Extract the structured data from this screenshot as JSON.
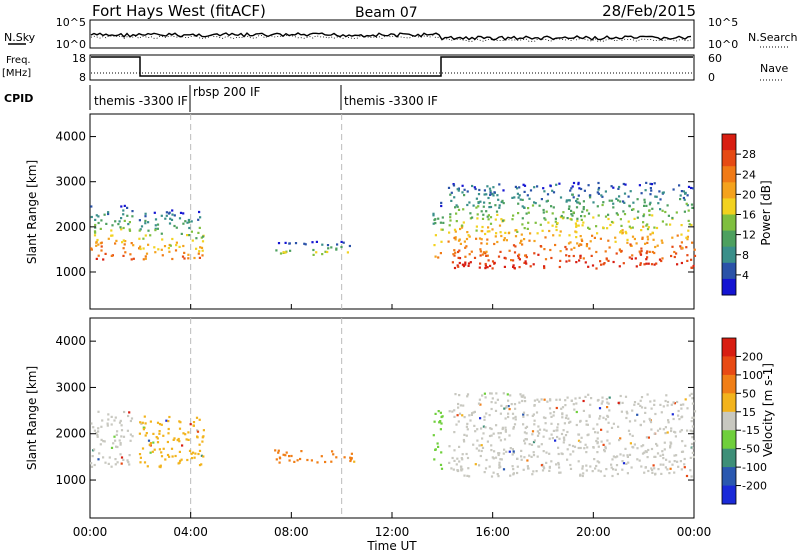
{
  "header": {
    "title": "Fort Hays West (fitACF)",
    "beam": "Beam 07",
    "date": "28/Feb/2015"
  },
  "nsky_panel": {
    "left_label": "N.Sky",
    "left_ticks": [
      "10^5",
      "10^0"
    ],
    "right_label": "N.Search",
    "right_ticks": [
      "10^5",
      "10^0"
    ]
  },
  "freq_panel": {
    "left_label": "Freq.",
    "left_units": "[MHz]",
    "left_ticks": [
      "18",
      "8"
    ],
    "right_label": "Nave",
    "right_ticks": [
      "60",
      "0"
    ]
  },
  "cpid_panel": {
    "label": "CPID",
    "segments": [
      {
        "start_hour": 0.0,
        "label": "themis -3300 IF"
      },
      {
        "start_hour": 4.0,
        "label": "rbsp 200 IF"
      },
      {
        "start_hour": 10.0,
        "label": "themis -3300 IF"
      }
    ]
  },
  "x_axis": {
    "label": "Time UT",
    "ticks": [
      "00:00",
      "04:00",
      "08:00",
      "12:00",
      "16:00",
      "20:00",
      "00:00"
    ],
    "range_hours": [
      0,
      24
    ]
  },
  "chart_data": [
    {
      "type": "heatmap",
      "panel": "power",
      "ylabel": "Slant Range [km]",
      "yticks": [
        "1000",
        "2000",
        "3000",
        "4000"
      ],
      "ylim": [
        180,
        4500
      ],
      "colorbar_label": "Power [dB]",
      "colorbar_ticks": [
        "28",
        "24",
        "20",
        "16",
        "12",
        "8",
        "4"
      ],
      "colorbar_colors": [
        "#1414d2",
        "#2a52a8",
        "#3a8f8a",
        "#4da05f",
        "#7fbf3f",
        "#f2d21f",
        "#f4a21d",
        "#f07a16",
        "#e64a14",
        "#d81e12"
      ],
      "patches": [
        {
          "t0": 0.0,
          "t1": 1.7,
          "r_low": 1300,
          "r_high": 2500,
          "level": 0.5
        },
        {
          "t0": 1.9,
          "t1": 4.5,
          "r_low": 1300,
          "r_high": 2400,
          "level": 0.35
        },
        {
          "t0": 7.3,
          "t1": 10.5,
          "r_low": 1400,
          "r_high": 1700,
          "level": 0.1
        },
        {
          "t0": 13.6,
          "t1": 14.0,
          "r_low": 1200,
          "r_high": 2600,
          "level": 0.4
        },
        {
          "t0": 14.2,
          "t1": 24.0,
          "r_low": 1100,
          "r_high": 3000,
          "level": 0.55
        }
      ]
    },
    {
      "type": "heatmap",
      "panel": "velocity",
      "ylabel": "Slant Range [km]",
      "yticks": [
        "1000",
        "2000",
        "3000",
        "4000"
      ],
      "ylim": [
        180,
        4500
      ],
      "colorbar_label": "Velocity [m s-1]",
      "colorbar_ticks": [
        "200",
        "100",
        "50",
        "15",
        "-15",
        "-50",
        "-100",
        "-200"
      ],
      "colorbar_colors": [
        "#1a2ad8",
        "#2a58b0",
        "#3e8f78",
        "#6fcf3c",
        "#c8c8c0",
        "#f2b31c",
        "#f07e16",
        "#e84a14",
        "#d81e12"
      ],
      "patches": [
        {
          "t0": 0.0,
          "t1": 1.7,
          "r_low": 1300,
          "r_high": 2500,
          "color": "#c8c8c0"
        },
        {
          "t0": 1.9,
          "t1": 4.5,
          "r_low": 1300,
          "r_high": 2400,
          "color": "#f2b31c"
        },
        {
          "t0": 7.3,
          "t1": 10.5,
          "r_low": 1400,
          "r_high": 1700,
          "color": "#f07e16"
        },
        {
          "t0": 13.6,
          "t1": 14.0,
          "r_low": 1200,
          "r_high": 2600,
          "color": "#6fcf3c"
        },
        {
          "t0": 14.2,
          "t1": 24.0,
          "r_low": 1100,
          "r_high": 2900,
          "color": "#c8c8c0"
        }
      ]
    }
  ]
}
